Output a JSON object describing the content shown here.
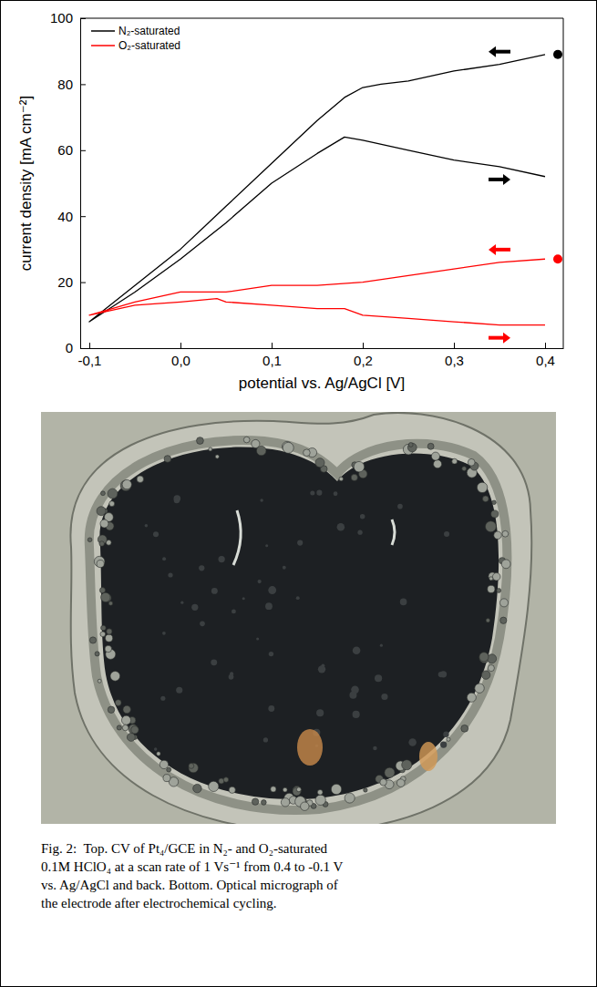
{
  "chart_data": {
    "type": "line",
    "x_label": "potential vs. Ag/AgCl [V]",
    "y_label": "current density [mA cm⁻²]",
    "xlim": [
      -0.11,
      0.42
    ],
    "xticks": [
      {
        "value": -0.1,
        "label": "-0,1"
      },
      {
        "value": 0,
        "label": "0,0"
      },
      {
        "value": 0.1,
        "label": "0,1"
      },
      {
        "value": 0.2,
        "label": "0,2"
      },
      {
        "value": 0.3,
        "label": "0,3"
      },
      {
        "value": 0.4,
        "label": "0,4"
      }
    ],
    "ylim": [
      0,
      100
    ],
    "yticks": [
      0,
      20,
      40,
      60,
      80,
      100
    ],
    "grid": false,
    "legend": "top-left",
    "series": [
      {
        "name": "N₂-saturated",
        "color": "#000000",
        "x": [
          0.4,
          0.35,
          0.3,
          0.25,
          0.22,
          0.2,
          0.18,
          0.15,
          0.1,
          0.05,
          0.0,
          -0.05,
          -0.1,
          -0.05,
          0.0,
          0.05,
          0.1,
          0.15,
          0.18,
          0.2,
          0.25,
          0.3,
          0.35,
          0.4
        ],
        "values": [
          89,
          86,
          84,
          81,
          80,
          79,
          76,
          69,
          56,
          43,
          30,
          19,
          8,
          17,
          27,
          38,
          50,
          59,
          64,
          63,
          60,
          57,
          55,
          52
        ]
      },
      {
        "name": "O₂-saturated",
        "color": "#ff0000",
        "x": [
          0.4,
          0.35,
          0.3,
          0.25,
          0.2,
          0.15,
          0.1,
          0.05,
          0.0,
          -0.05,
          -0.1,
          -0.05,
          0.0,
          0.04,
          0.05,
          0.1,
          0.15,
          0.18,
          0.2,
          0.25,
          0.3,
          0.35,
          0.4
        ],
        "values": [
          27,
          26,
          24,
          22,
          20,
          19,
          19,
          17,
          17,
          14,
          10,
          13,
          14,
          15,
          14,
          13,
          12,
          12,
          10,
          9,
          8,
          7,
          7
        ]
      }
    ]
  },
  "caption": {
    "lines": [
      "Fig. 2:  Top. CV of Pt₄/GCE in N₂- and O₂-saturated",
      "0.1M HClO₄ at a scan rate of 1 Vs⁻¹ from 0.4 to -0.1 V",
      "vs. Ag/AgCl and back. Bottom. Optical micrograph of",
      "the electrode after electrochemical cycling."
    ]
  }
}
